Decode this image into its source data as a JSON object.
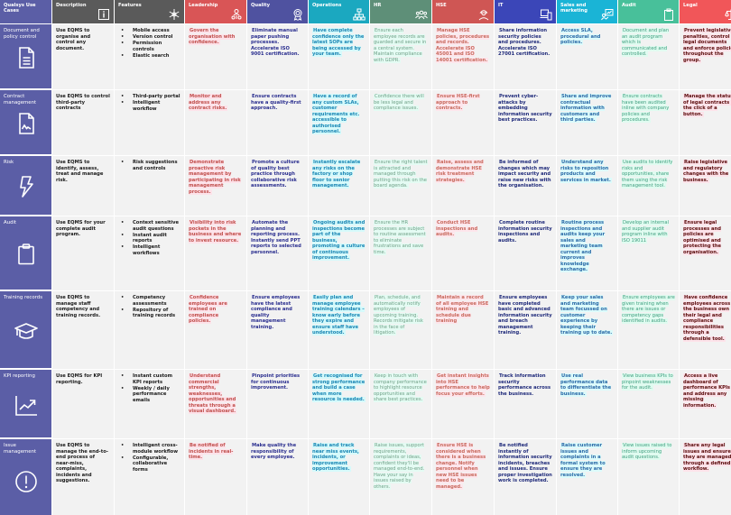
{
  "header": {
    "corner": "Qualsys Use Cases",
    "columns": [
      {
        "key": "description",
        "label": "Description",
        "color": "#5a5a5a",
        "icon": "info-icon"
      },
      {
        "key": "features",
        "label": "Features",
        "color": "#5a5a5a",
        "icon": "asterisk-icon"
      },
      {
        "key": "leadership",
        "label": "Leadership",
        "color": "#d95556",
        "icon": "leader-org-icon"
      },
      {
        "key": "quality",
        "label": "Quality",
        "color": "#4f52a0",
        "icon": "award-badge-icon"
      },
      {
        "key": "operations",
        "label": "Operations",
        "color": "#1ba8c0",
        "icon": "org-chart-icon"
      },
      {
        "key": "hr",
        "label": "HR",
        "color": "#5e8f78",
        "icon": "people-group-icon"
      },
      {
        "key": "hse",
        "label": "HSE",
        "color": "#cf5654",
        "icon": "hard-hat-worker-icon"
      },
      {
        "key": "it",
        "label": "IT",
        "color": "#3b46b8",
        "icon": "devices-icon"
      },
      {
        "key": "sales",
        "label": "Sales and marketing",
        "color": "#1ab4d6",
        "icon": "presentation-chart-icon"
      },
      {
        "key": "audit",
        "label": "Audit",
        "color": "#48c09a",
        "icon": "clipboard-icon"
      },
      {
        "key": "legal",
        "label": "Legal",
        "color": "#f15659",
        "icon": "scales-icon"
      }
    ]
  },
  "rows": [
    {
      "label": "Document and policy control",
      "icon": "document-icon",
      "description": "Use EQMS to organise and control any document.",
      "features": [
        "Mobile access",
        "Version control",
        "Permission controls",
        "Elastic search"
      ],
      "leadership": "Govern the organisation with confidence.",
      "quality": "Eliminate manual paper pushing processes. Accelerate ISO 9001 certification.",
      "operations": "Have complete confidence only the latest SOPs are being accessed by your team.",
      "hr": "Ensure each employee records are guarded and secure in a central system. Maintain compliance with GDPR.",
      "hse": "Manage HSE policies, procedures and records. Accelerate ISO 45001 and ISO 14001 certification.",
      "it": "Share information security policies and procedures. Accelerate ISO 27001 certification.",
      "sales": "Access SLA, procedural and policies.",
      "audit": "Document and plan an audit program which is communicated and controlled.",
      "legal": "Prevent legislative penalties, control legal documents and enforce policies throughout the group."
    },
    {
      "label": "Contract management",
      "icon": "contract-signature-icon",
      "description": "Use EQMS to control third-party contracts",
      "features": [
        "Third-party portal",
        "Intelligent workflow"
      ],
      "leadership": "Monitor and address any contract risks.",
      "quality": "Ensure contracts have a quality-first approach.",
      "operations": "Have a record of any custom SLAs, customer requirements etc. accessible to authorised personnel.",
      "hr": "Confidence there will be less legal and compliance issues.",
      "hse": "Ensure HSE-first approach to contracts.",
      "it": "Prevent cyber-attacks by embedding information security best practices.",
      "sales": "Share and improve contractual information with customers and third parties.",
      "audit": "Ensure contracts have been audited inline with company policies and procedures.",
      "legal": "Manage the status of legal contracts at the click of a button."
    },
    {
      "label": "Risk",
      "icon": "lightning-bolt-icon",
      "description": "Use EQMS to identify, assess, treat and manage risk.",
      "features": [
        "Risk suggestions and controls"
      ],
      "leadership": "Demonstrate proactive risk management by participating in risk management process.",
      "quality": "Promote a culture of quality best practice through collaborative risk assessments.",
      "operations": "Instantly escalate any risks on the factory or shop floor to senior management.",
      "hr": "Ensure the right talent is attracted and managed through putting this risk on the board agenda.",
      "hse": "Raise, assess and demonstrate HSE risk treatment strategies.",
      "it": "Be informed of changes which may impact security and raise new risks with the organisation.",
      "sales": "Understand any risks to reposition products and services in market.",
      "audit": "Use audits to identify risks and opportunities, share them using the risk management tool.",
      "legal": "Raise legislative and regulatory changes with the business."
    },
    {
      "label": "Audit",
      "icon": "clipboard-icon",
      "description": "Use EQMS for your complete audit program.",
      "features": [
        "Context sensitive audit questions",
        "Instant audit reports",
        "Intelligent workflows"
      ],
      "leadership": "Visibility into risk pockets in the business and where to invest resource.",
      "quality": "Automate the planning and reporting process. Instantly send PPT reports to selected personnel.",
      "operations": "Ongoing audits and inspections become part of the business, promoting a culture of continuous improvement.",
      "hr": "Ensure the HR processes are subject to routine assessment to eliminate frustrations and save time.",
      "hse": "Conduct HSE inspections and audits.",
      "it": "Complete routine information security inspections and audits.",
      "sales": "Routine process inspections and audits keep your sales and marketing team current and improves knowledge exchange.",
      "audit": "Develop an internal and supplier audit program inline with ISO 19011",
      "legal": "Ensure legal processes and policies are optimised and protecting the organisation."
    },
    {
      "label": "Training records",
      "icon": "graduation-cap-icon",
      "description": "Use EQMS to manage staff competency and training records.",
      "features": [
        "Competency assessments",
        "Repository of training records"
      ],
      "leadership": "Confidence employees are trained on compliance policies.",
      "quality": "Ensure employees have the latest compliance and quality management training.",
      "operations": "Easily plan and manage employee training calendars – know early before they expire and ensure staff have understood.",
      "hr": "Plan, schedule, and automatically notify employees of upcoming training. Records mitigate risk in the face of litigation.",
      "hse": "Maintain a record of all employee HSE training and schedule due training",
      "it": "Ensure employees have completed basic and advanced information security and breach management training.",
      "sales": "Keep your sales and marketing team focussed on customer experience by keeping their training up to date.",
      "audit": "Ensure employees are given training when there are issues or competency gaps identified in audits.",
      "legal": "Have confidence employees across the business own their legal and compliance responsibilities through a defensible tool."
    },
    {
      "label": "KPI reporting",
      "icon": "trend-chart-icon",
      "description": "Use EQMS for KPI reporting.",
      "features": [
        "Instant custom KPI reports",
        "Weekly / daily performance emails"
      ],
      "leadership": "Understand commercial strengths, weaknesses, opportunities and threats through a visual dashboard.",
      "quality": "Pinpoint priorities for continuous improvement.",
      "operations": "Get recognised for strong performance and build a case when more resource is needed.",
      "hr": "Keep in touch with company performance to highlight resource opportunities and share best practices.",
      "hse": "Get instant insights into HSE performance to help focus your efforts.",
      "it": "Track information security performance across the business.",
      "sales": "Use real performance data to differentiate the business.",
      "audit": "View business KPIs to pinpoint weaknesses for the audit.",
      "legal": "Access a live dashboard of performance KPIs and address any missing information."
    },
    {
      "label": "Issue management",
      "icon": "exclamation-circle-icon",
      "description": "Use EQMS to manage the end-to-end process of near-miss, complaints, incidents and suggestions.",
      "features": [
        "Intelligent cross-module workflow",
        "Configurable, collaborative forms"
      ],
      "leadership": "Be notified of incidents in real-time.",
      "quality": "Make quality the responsibility of every employee.",
      "operations": "Raise and track near miss events, incidents, or improvement opportunities.",
      "hr": "Raise issues, support requirements, complaints or ideas, confident they'll be managed end-to-end. Have your say in issues raised by others.",
      "hse": "Ensure HSE is considered when there is a business change. Notify personnel when new HSE issues need to be managed.",
      "it": "Be notified instantly of information security incidents, breaches and issues. Ensure proper investigation work is completed.",
      "sales": "Raise customer issues and complaints in a formal system to ensure they are resolved.",
      "audit": "View issues raised to inform upcoming audit questions.",
      "legal": "Share any legal issues and ensure they are managed through a defined workflow."
    }
  ]
}
